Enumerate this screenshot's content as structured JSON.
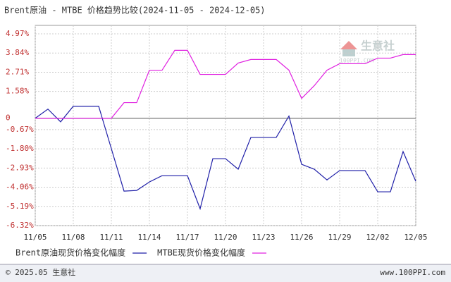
{
  "chart_data": {
    "type": "line",
    "title": "Brent原油 - MTBE 价格趋势比较(2024-11-05 - 2024-12-05)",
    "categories": [
      "11/05",
      null,
      null,
      "11/08",
      null,
      null,
      "11/11",
      null,
      null,
      "11/14",
      null,
      null,
      "11/17",
      null,
      null,
      "11/20",
      null,
      null,
      "11/23",
      null,
      null,
      "11/26",
      null,
      null,
      "11/29",
      null,
      null,
      "12/02",
      null,
      null,
      "12/05"
    ],
    "series": [
      {
        "name": "Brent原油现货价格变化幅度",
        "color": "#1f1fa8",
        "values": [
          0,
          0.54,
          -0.21,
          0.71,
          0.71,
          0.71,
          -1.79,
          -4.29,
          -4.25,
          -3.75,
          -3.38,
          -3.38,
          -3.38,
          -5.33,
          -2.38,
          -2.38,
          -3.0,
          -1.13,
          -1.13,
          -1.13,
          0.13,
          -2.71,
          -3.0,
          -3.63,
          -3.08,
          -3.08,
          -3.08,
          -4.33,
          -4.33,
          -1.96,
          -3.71
        ]
      },
      {
        "name": "MTBE现货价格变化幅度",
        "color": "#e020e0",
        "values": [
          0,
          0,
          0,
          0,
          0,
          0,
          0,
          0.92,
          0.92,
          2.83,
          2.83,
          4.0,
          4.0,
          2.58,
          2.58,
          2.58,
          3.25,
          3.46,
          3.46,
          3.46,
          2.83,
          1.17,
          1.92,
          2.83,
          3.21,
          3.21,
          3.21,
          3.54,
          3.54,
          3.75,
          3.75
        ]
      }
    ],
    "ylim": [
      -6.32,
      4.97
    ],
    "yticks": [
      {
        "value": 4.97,
        "label": "4.97%"
      },
      {
        "value": 3.84,
        "label": "3.84%"
      },
      {
        "value": 2.71,
        "label": "2.71%"
      },
      {
        "value": 1.58,
        "label": "1.58%"
      },
      0,
      {
        "value": -0.67,
        "label": "-0.67%"
      },
      {
        "value": -1.8,
        "label": "-1.80%"
      },
      {
        "value": -2.93,
        "label": "-2.93%"
      },
      {
        "value": -4.06,
        "label": "-4.06%"
      },
      {
        "value": -5.19,
        "label": "-5.19%"
      },
      {
        "value": -6.32,
        "label": "-6.32%"
      }
    ],
    "grid": true,
    "watermark": "生意社",
    "watermark_sub": "100PPI.COM",
    "footer_left": "© 2025.05 生意社",
    "footer_right": "www.100PPI.com"
  }
}
